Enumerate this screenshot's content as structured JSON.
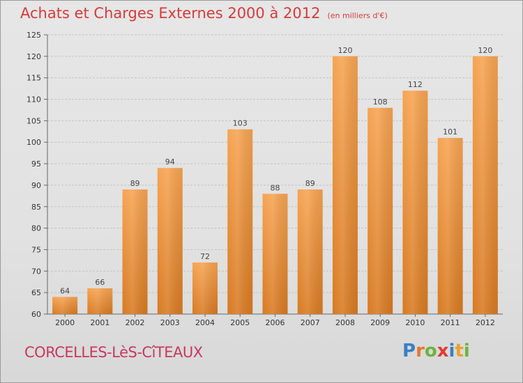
{
  "title": "Achats et Charges Externes 2000 à 2012",
  "subtitle": "(en milliers d'€)",
  "commune": "CORCELLES-LèS-CîTEAUX",
  "logo": {
    "text": "Proxiti",
    "letters": [
      {
        "ch": "P",
        "color": "#3b7fc4"
      },
      {
        "ch": "r",
        "color": "#e8762c"
      },
      {
        "ch": "o",
        "color": "#6fb33d"
      },
      {
        "ch": "x",
        "color": "#e23a32"
      },
      {
        "ch": "i",
        "color": "#3b7fc4"
      },
      {
        "ch": "t",
        "color": "#e8a22c"
      },
      {
        "ch": "i",
        "color": "#6fb33d"
      }
    ]
  },
  "colors": {
    "title": "#d83a3a",
    "commune": "#c8385e",
    "bar_top": "#f6a452",
    "bar_bottom": "#d87a22"
  },
  "chart_data": {
    "type": "bar",
    "title": "Achats et Charges Externes 2000 à 2012",
    "subtitle": "(en milliers d'€)",
    "categories": [
      "2000",
      "2001",
      "2002",
      "2003",
      "2004",
      "2005",
      "2006",
      "2007",
      "2008",
      "2009",
      "2010",
      "2011",
      "2012"
    ],
    "values": [
      64,
      66,
      89,
      94,
      72,
      103,
      88,
      89,
      120,
      108,
      112,
      101,
      120
    ],
    "ylim": [
      60,
      125
    ],
    "yticks": [
      60,
      65,
      70,
      75,
      80,
      85,
      90,
      95,
      100,
      105,
      110,
      115,
      120,
      125
    ],
    "grid": true,
    "legend": "none"
  }
}
